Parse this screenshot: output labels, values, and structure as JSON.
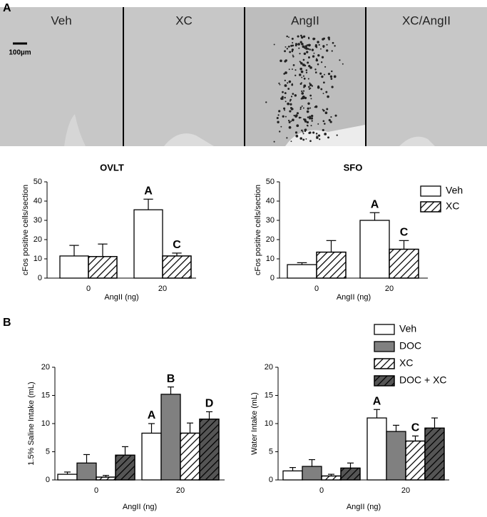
{
  "panels": [
    "A",
    "B"
  ],
  "images": [
    "Veh",
    "XC",
    "AngII",
    "XC/AngII"
  ],
  "scale_bar": "100µm",
  "chart_data": [
    {
      "type": "bar",
      "title": "OVLT",
      "ylabel": "cFos positive cells/section",
      "xlabel": "AngII (ng)",
      "categories": [
        "0",
        "20"
      ],
      "ylim": [
        0,
        50
      ],
      "yticks": [
        0,
        10,
        20,
        30,
        40,
        50
      ],
      "series": [
        {
          "color": "#ffffff",
          "hatch": false,
          "values": [
            11.5,
            35.5
          ],
          "errors": [
            5.5,
            5.5
          ],
          "labels": [
            null,
            "A"
          ]
        },
        {
          "color": "#ffffff",
          "hatch": true,
          "values": [
            11.2,
            11.5
          ],
          "errors": [
            6.5,
            1.5
          ],
          "labels": [
            null,
            "C"
          ]
        }
      ]
    },
    {
      "type": "bar",
      "title": "SFO",
      "ylabel": "cFos positive cells/section",
      "xlabel": "AngII (ng)",
      "categories": [
        "0",
        "20"
      ],
      "ylim": [
        0,
        50
      ],
      "yticks": [
        0,
        10,
        20,
        30,
        40,
        50
      ],
      "legend": "upper right",
      "series": [
        {
          "name": "Veh",
          "color": "#ffffff",
          "hatch": false,
          "values": [
            7,
            30
          ],
          "errors": [
            1,
            4
          ],
          "labels": [
            null,
            "A"
          ]
        },
        {
          "name": "XC",
          "color": "#ffffff",
          "hatch": true,
          "values": [
            13.5,
            15
          ],
          "errors": [
            6,
            4.5
          ],
          "labels": [
            null,
            "C"
          ]
        }
      ]
    },
    {
      "type": "bar",
      "ylabel": "1.5% Saline Intake (mL)",
      "xlabel": "AngII (ng)",
      "categories": [
        "0",
        "20"
      ],
      "ylim": [
        0,
        20
      ],
      "yticks": [
        0,
        5,
        10,
        15,
        20
      ],
      "series": [
        {
          "color": "#ffffff",
          "hatch": false,
          "values": [
            1,
            8.3
          ],
          "errors": [
            0.4,
            1.7
          ],
          "labels": [
            null,
            "A"
          ]
        },
        {
          "color": "#808080",
          "hatch": false,
          "values": [
            3,
            15.2
          ],
          "errors": [
            1.5,
            1.3
          ],
          "labels": [
            null,
            "B"
          ]
        },
        {
          "color": "#ffffff",
          "hatch": true,
          "values": [
            0.5,
            8.3
          ],
          "errors": [
            0.3,
            1.8
          ],
          "labels": [
            null,
            null
          ]
        },
        {
          "color": "#555555",
          "hatch": true,
          "values": [
            4.4,
            10.8
          ],
          "errors": [
            1.5,
            1.3
          ],
          "labels": [
            null,
            "D"
          ]
        }
      ]
    },
    {
      "type": "bar",
      "ylabel": "Water Intake (mL)",
      "xlabel": "AngII (ng)",
      "categories": [
        "0",
        "20"
      ],
      "ylim": [
        0,
        20
      ],
      "yticks": [
        0,
        5,
        10,
        15,
        20
      ],
      "legend": "upper right",
      "series": [
        {
          "name": "Veh",
          "color": "#ffffff",
          "hatch": false,
          "values": [
            1.6,
            11
          ],
          "errors": [
            0.6,
            1.5
          ],
          "labels": [
            null,
            "A"
          ]
        },
        {
          "name": "DOC",
          "color": "#808080",
          "hatch": false,
          "values": [
            2.4,
            8.6
          ],
          "errors": [
            1.2,
            1.1
          ],
          "labels": [
            null,
            null
          ]
        },
        {
          "name": "XC",
          "color": "#ffffff",
          "hatch": true,
          "values": [
            0.7,
            6.9
          ],
          "errors": [
            0.3,
            0.9
          ],
          "labels": [
            null,
            "C"
          ]
        },
        {
          "name": "DOC + XC",
          "color": "#555555",
          "hatch": true,
          "values": [
            2.1,
            9.2
          ],
          "errors": [
            0.9,
            1.8
          ],
          "labels": [
            null,
            null
          ]
        }
      ]
    }
  ]
}
